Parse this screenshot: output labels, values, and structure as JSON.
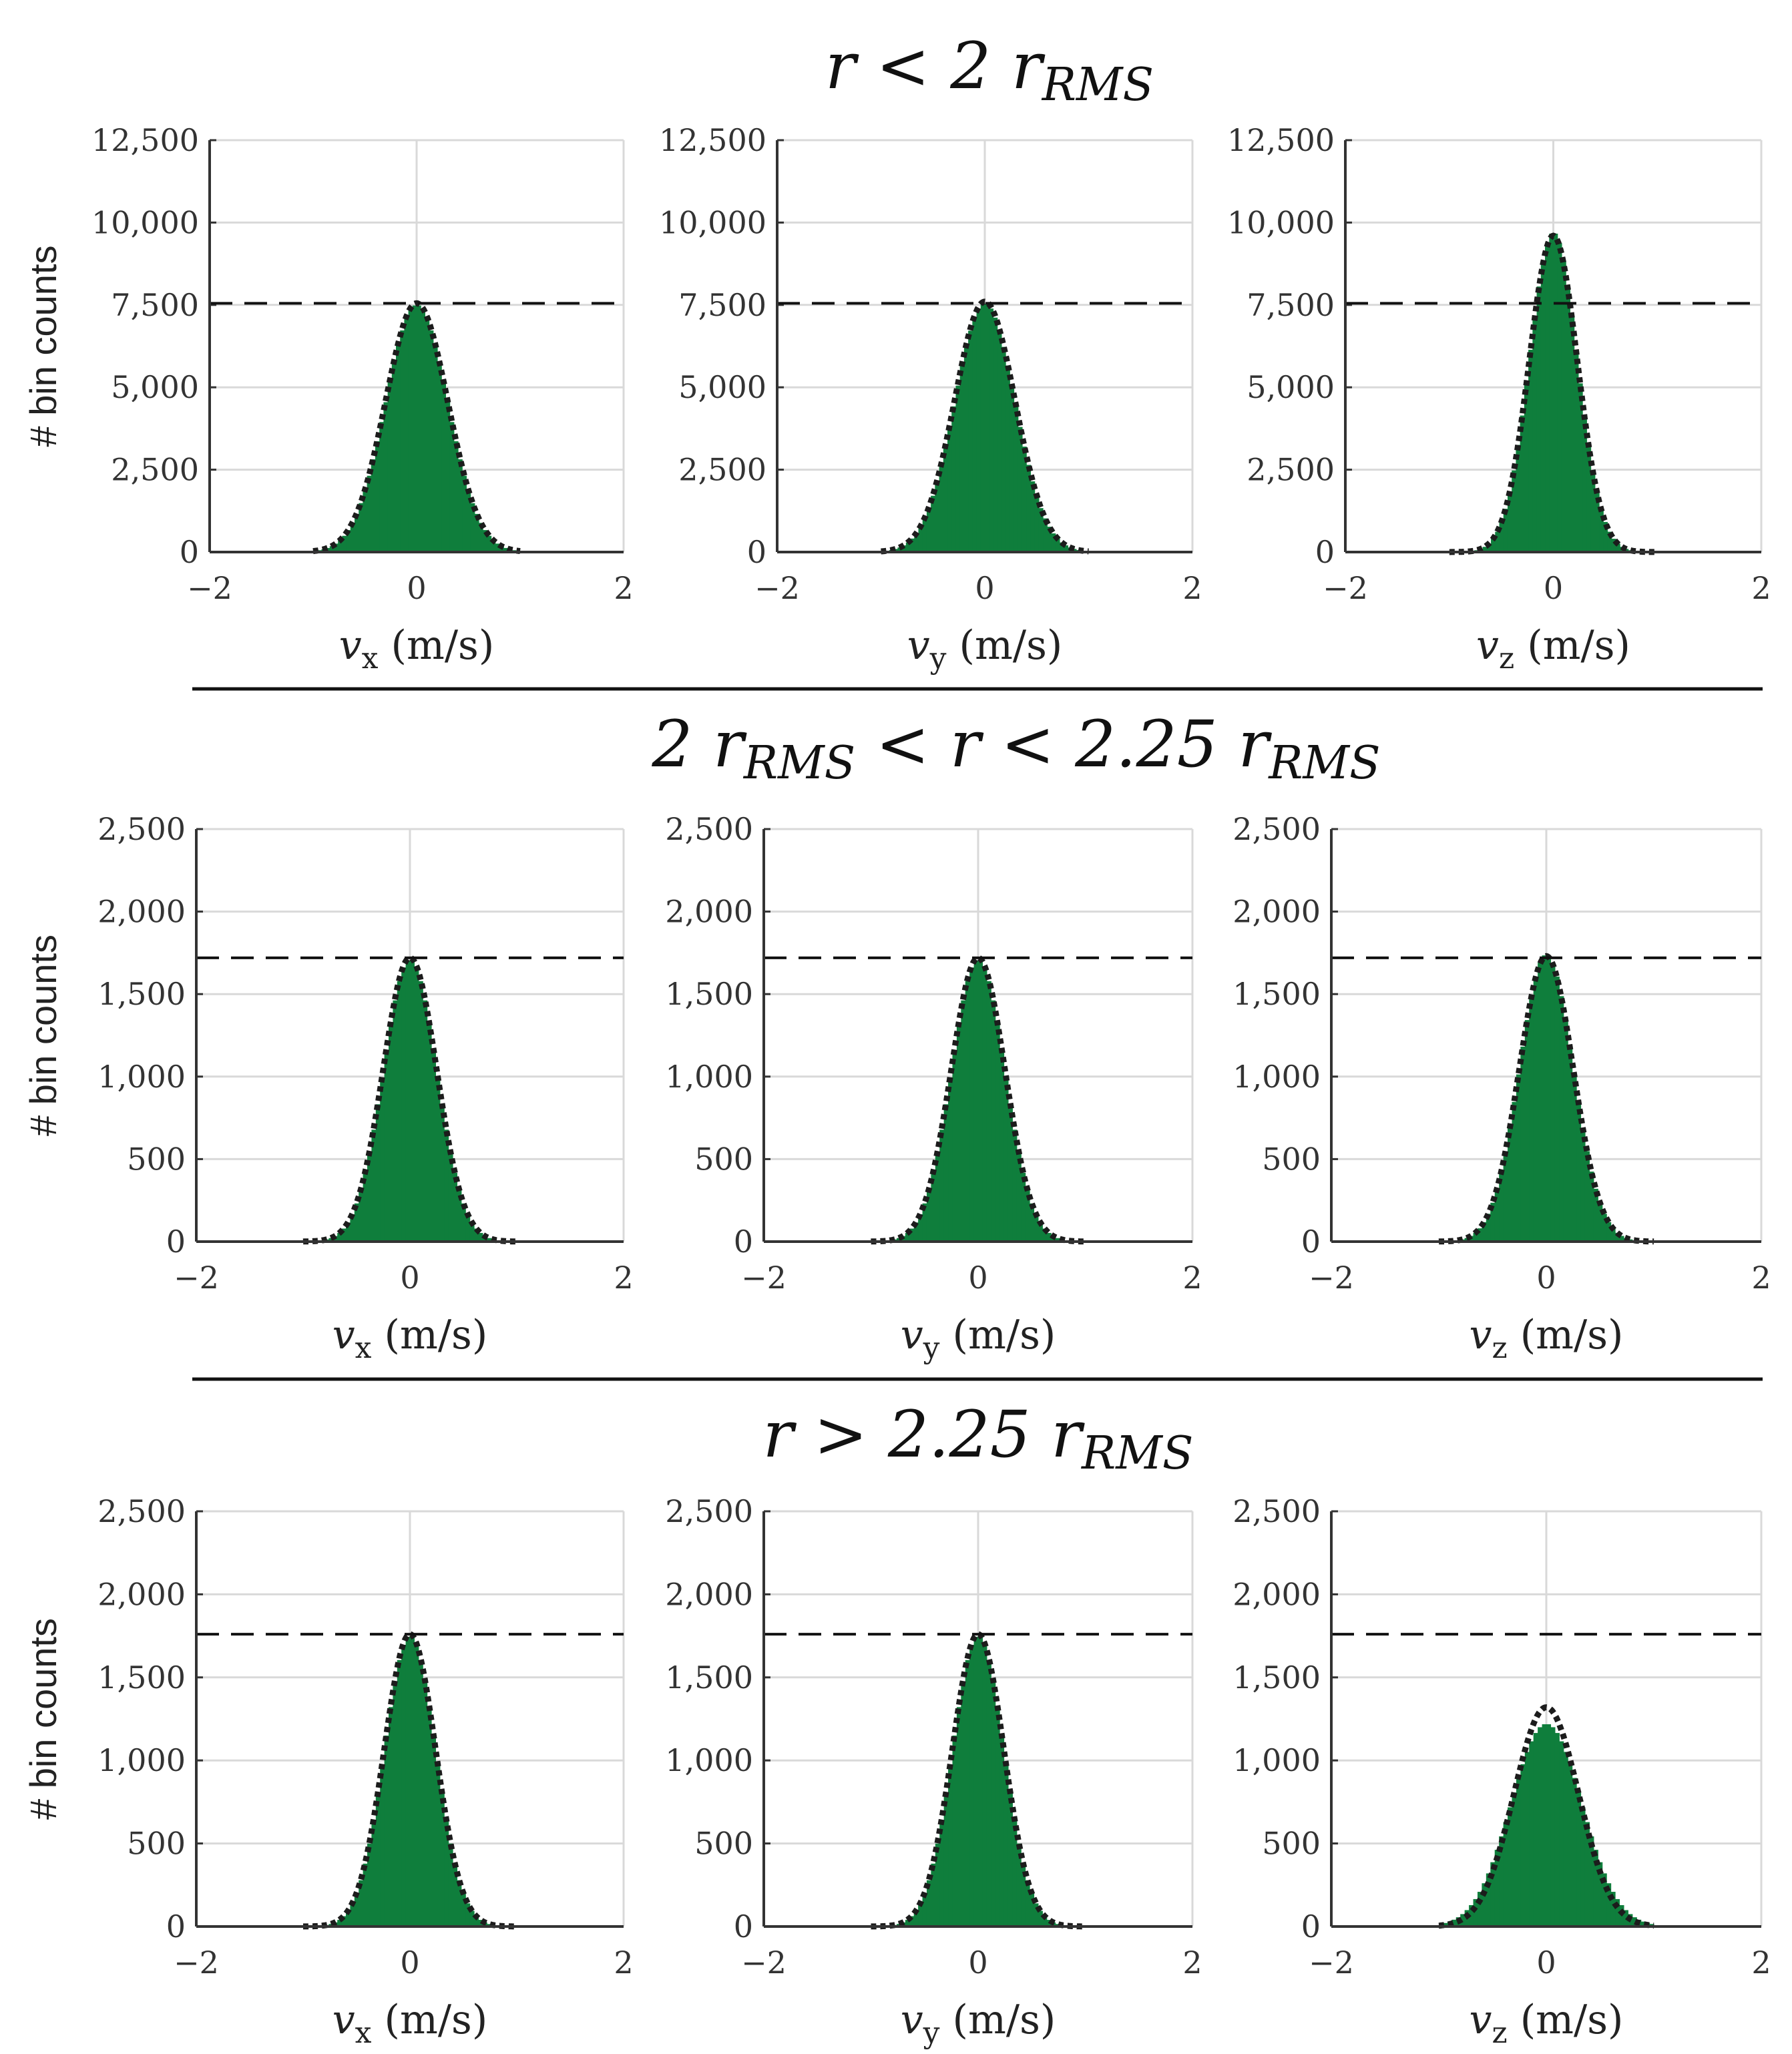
{
  "colors": {
    "bar": "#0f7e3c",
    "fit": "#1c1c1c",
    "grid": "#d9d9d9",
    "axis": "#333333",
    "ref": "#111111"
  },
  "row_titles": [
    "r < 2 r",
    "2 r",
    "r > 2.25 r"
  ],
  "row_title_parts": [
    {
      "main": "r < 2 r",
      "sub": "RMS"
    },
    {
      "p1": "2 r",
      "s1": "RMS",
      "p2": " < r < 2.25 r",
      "s2": "RMS"
    },
    {
      "main": "r > 2.25 r",
      "sub": "RMS"
    }
  ],
  "ylabel": "# bin counts",
  "xlabels": [
    {
      "v": "v",
      "sub": "x",
      "unit": " (m/s)"
    },
    {
      "v": "v",
      "sub": "y",
      "unit": " (m/s)"
    },
    {
      "v": "v",
      "sub": "z",
      "unit": " (m/s)"
    }
  ],
  "chart_data": [
    {
      "type": "bar",
      "row": 0,
      "col": 0,
      "xlabel": "v_x (m/s)",
      "ylabel": "# bin counts",
      "xlim": [
        -2,
        2
      ],
      "ylim": [
        0,
        12500
      ],
      "xticks": [
        -2,
        0,
        2
      ],
      "xtick_labels": [
        "−2",
        "0",
        "2"
      ],
      "yticks": [
        0,
        2500,
        5000,
        7500,
        10000,
        12500
      ],
      "ytick_labels": [
        "0",
        "2,500",
        "5,000",
        "7,500",
        "10,000",
        "12,500"
      ],
      "reference_line": 7550,
      "histogram_peak": 7500,
      "fit_peak": 7550,
      "histogram_sigma": 0.3,
      "fit_sigma": 0.3,
      "range": [
        -1,
        1
      ]
    },
    {
      "type": "bar",
      "row": 0,
      "col": 1,
      "xlabel": "v_y (m/s)",
      "ylabel": "",
      "xlim": [
        -2,
        2
      ],
      "ylim": [
        0,
        12500
      ],
      "xticks": [
        -2,
        0,
        2
      ],
      "xtick_labels": [
        "−2",
        "0",
        "2"
      ],
      "yticks": [
        0,
        2500,
        5000,
        7500,
        10000,
        12500
      ],
      "ytick_labels": [
        "0",
        "2,500",
        "5,000",
        "7,500",
        "10,000",
        "12,500"
      ],
      "reference_line": 7550,
      "histogram_peak": 7550,
      "fit_peak": 7600,
      "histogram_sigma": 0.29,
      "fit_sigma": 0.29,
      "range": [
        -1,
        1
      ]
    },
    {
      "type": "bar",
      "row": 0,
      "col": 2,
      "xlabel": "v_z (m/s)",
      "ylabel": "",
      "xlim": [
        -2,
        2
      ],
      "ylim": [
        0,
        12500
      ],
      "xticks": [
        -2,
        0,
        2
      ],
      "xtick_labels": [
        "−2",
        "0",
        "2"
      ],
      "yticks": [
        0,
        2500,
        5000,
        7500,
        10000,
        12500
      ],
      "ytick_labels": [
        "0",
        "2,500",
        "5,000",
        "7,500",
        "10,000",
        "12,500"
      ],
      "reference_line": 7550,
      "histogram_peak": 9700,
      "fit_peak": 9600,
      "histogram_sigma": 0.23,
      "fit_sigma": 0.23,
      "range": [
        -1,
        1
      ]
    },
    {
      "type": "bar",
      "row": 1,
      "col": 0,
      "xlabel": "v_x (m/s)",
      "ylabel": "# bin counts",
      "xlim": [
        -2,
        2
      ],
      "ylim": [
        0,
        2500
      ],
      "xticks": [
        -2,
        0,
        2
      ],
      "xtick_labels": [
        "−2",
        "0",
        "2"
      ],
      "yticks": [
        0,
        500,
        1000,
        1500,
        2000,
        2500
      ],
      "ytick_labels": [
        "0",
        "500",
        "1,000",
        "1,500",
        "2,000",
        "2,500"
      ],
      "reference_line": 1720,
      "histogram_peak": 1710,
      "fit_peak": 1720,
      "histogram_sigma": 0.25,
      "fit_sigma": 0.25,
      "range": [
        -1,
        1
      ]
    },
    {
      "type": "bar",
      "row": 1,
      "col": 1,
      "xlabel": "v_y (m/s)",
      "ylabel": "",
      "xlim": [
        -2,
        2
      ],
      "ylim": [
        0,
        2500
      ],
      "xticks": [
        -2,
        0,
        2
      ],
      "xtick_labels": [
        "−2",
        "0",
        "2"
      ],
      "yticks": [
        0,
        500,
        1000,
        1500,
        2000,
        2500
      ],
      "ytick_labels": [
        "0",
        "500",
        "1,000",
        "1,500",
        "2,000",
        "2,500"
      ],
      "reference_line": 1720,
      "histogram_peak": 1710,
      "fit_peak": 1720,
      "histogram_sigma": 0.25,
      "fit_sigma": 0.25,
      "range": [
        -1,
        1
      ]
    },
    {
      "type": "bar",
      "row": 1,
      "col": 2,
      "xlabel": "v_z (m/s)",
      "ylabel": "",
      "xlim": [
        -2,
        2
      ],
      "ylim": [
        0,
        2500
      ],
      "xticks": [
        -2,
        0,
        2
      ],
      "xtick_labels": [
        "−2",
        "0",
        "2"
      ],
      "yticks": [
        0,
        500,
        1000,
        1500,
        2000,
        2500
      ],
      "ytick_labels": [
        "0",
        "500",
        "1,000",
        "1,500",
        "2,000",
        "2,500"
      ],
      "reference_line": 1720,
      "histogram_peak": 1740,
      "fit_peak": 1730,
      "histogram_sigma": 0.25,
      "fit_sigma": 0.25,
      "range": [
        -1,
        1
      ]
    },
    {
      "type": "bar",
      "row": 2,
      "col": 0,
      "xlabel": "v_x (m/s)",
      "ylabel": "# bin counts",
      "xlim": [
        -2,
        2
      ],
      "ylim": [
        0,
        2500
      ],
      "xticks": [
        -2,
        0,
        2
      ],
      "xtick_labels": [
        "−2",
        "0",
        "2"
      ],
      "yticks": [
        0,
        500,
        1000,
        1500,
        2000,
        2500
      ],
      "ytick_labels": [
        "0",
        "500",
        "1,000",
        "1,500",
        "2,000",
        "2,500"
      ],
      "reference_line": 1760,
      "histogram_peak": 1750,
      "fit_peak": 1760,
      "histogram_sigma": 0.24,
      "fit_sigma": 0.24,
      "range": [
        -1,
        1
      ]
    },
    {
      "type": "bar",
      "row": 2,
      "col": 1,
      "xlabel": "v_y (m/s)",
      "ylabel": "",
      "xlim": [
        -2,
        2
      ],
      "ylim": [
        0,
        2500
      ],
      "xticks": [
        -2,
        0,
        2
      ],
      "xtick_labels": [
        "−2",
        "0",
        "2"
      ],
      "yticks": [
        0,
        500,
        1000,
        1500,
        2000,
        2500
      ],
      "ytick_labels": [
        "0",
        "500",
        "1,000",
        "1,500",
        "2,000",
        "2,500"
      ],
      "reference_line": 1760,
      "histogram_peak": 1750,
      "fit_peak": 1760,
      "histogram_sigma": 0.24,
      "fit_sigma": 0.24,
      "range": [
        -1,
        1
      ]
    },
    {
      "type": "bar",
      "row": 2,
      "col": 2,
      "xlabel": "v_z (m/s)",
      "ylabel": "",
      "xlim": [
        -2,
        2
      ],
      "ylim": [
        0,
        2500
      ],
      "xticks": [
        -2,
        0,
        2
      ],
      "xtick_labels": [
        "−2",
        "0",
        "2"
      ],
      "yticks": [
        0,
        500,
        1000,
        1500,
        2000,
        2500
      ],
      "ytick_labels": [
        "0",
        "500",
        "1,000",
        "1,500",
        "2,000",
        "2,500"
      ],
      "reference_line": 1760,
      "histogram_peak": 1220,
      "fit_peak": 1320,
      "histogram_sigma": 0.33,
      "fit_sigma": 0.3,
      "range": [
        -1,
        1
      ]
    }
  ]
}
